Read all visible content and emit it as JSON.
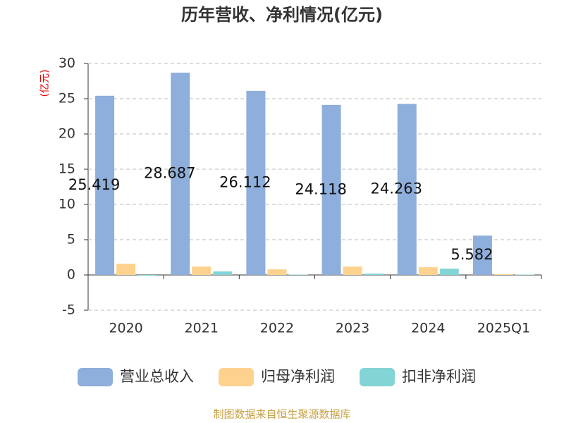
{
  "chart_data": {
    "type": "bar",
    "title": "历年营收、净利情况(亿元)",
    "y_label": "(亿元)",
    "source": "制图数据来自恒生聚源数据库",
    "categories": [
      "2020",
      "2021",
      "2022",
      "2023",
      "2024",
      "2025Q1"
    ],
    "series": [
      {
        "name": "营业总收入",
        "color": "#8eaedb",
        "values": [
          25.419,
          28.687,
          26.112,
          24.118,
          24.263,
          5.582
        ],
        "show_labels": true
      },
      {
        "name": "归母净利润",
        "color": "#fdd28f",
        "values": [
          1.6,
          1.2,
          0.8,
          1.2,
          1.1,
          0.1
        ]
      },
      {
        "name": "扣非净利润",
        "color": "#83d4d4",
        "values": [
          -0.1,
          0.5,
          0.05,
          0.2,
          0.9,
          0.05
        ]
      }
    ],
    "ylim": [
      -5,
      30
    ],
    "yticks": [
      -5,
      0,
      5,
      10,
      15,
      20,
      25,
      30
    ],
    "grid": true
  }
}
